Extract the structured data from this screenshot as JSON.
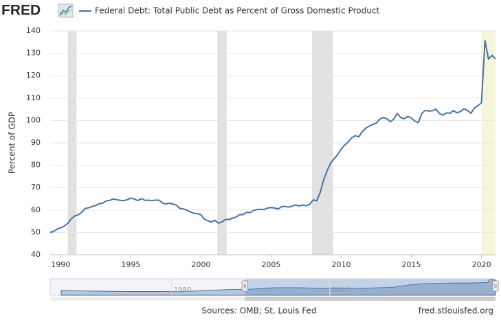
{
  "header": {
    "logo": "FRED"
  },
  "chart_data": [
    {
      "type": "line",
      "y_label": "Percent of GDP",
      "series": [
        {
          "name": "Federal Debt: Total Public Debt as Percent of Gross Domestic Product",
          "color": "#4572a7",
          "values": [
            50.0,
            50.4,
            51.5,
            52.0,
            52.8,
            54.0,
            56.0,
            57.3,
            57.8,
            59.0,
            60.7,
            61.0,
            61.6,
            62.0,
            62.8,
            63.1,
            64.1,
            64.3,
            64.9,
            64.6,
            64.3,
            64.2,
            64.6,
            65.3,
            64.9,
            64.2,
            65.1,
            64.3,
            64.4,
            64.2,
            64.4,
            64.4,
            63.2,
            62.7,
            63.0,
            62.7,
            62.1,
            60.7,
            60.5,
            59.9,
            59.1,
            58.5,
            58.4,
            57.9,
            55.8,
            55.2,
            54.6,
            55.4,
            54.1,
            54.7,
            55.8,
            55.7,
            56.4,
            56.8,
            57.9,
            57.9,
            59.0,
            58.8,
            59.8,
            60.2,
            60.3,
            60.2,
            60.9,
            61.1,
            60.9,
            60.4,
            61.5,
            61.6,
            61.3,
            61.7,
            62.3,
            61.8,
            62.2,
            61.9,
            62.5,
            64.5,
            64.1,
            67.8,
            73.5,
            77.6,
            81.0,
            82.9,
            84.8,
            87.2,
            89.0,
            90.4,
            92.2,
            93.2,
            92.7,
            95.0,
            96.5,
            97.5,
            98.2,
            98.8,
            100.6,
            101.3,
            100.8,
            99.4,
            100.6,
            103.1,
            101.2,
            100.8,
            101.8,
            101.1,
            99.7,
            99.0,
            103.2,
            104.5,
            104.2,
            104.3,
            105.1,
            103.1,
            102.4,
            103.4,
            103.2,
            104.4,
            103.4,
            104.0,
            105.2,
            104.5,
            103.2,
            105.6,
            106.6,
            107.9,
            135.6,
            127.4,
            129.1,
            127.5
          ]
        }
      ],
      "x": [
        1989.25,
        1989.5,
        1989.75,
        1990,
        1990.25,
        1990.5,
        1990.75,
        1991,
        1991.25,
        1991.5,
        1991.75,
        1992,
        1992.25,
        1992.5,
        1992.75,
        1993,
        1993.25,
        1993.5,
        1993.75,
        1994,
        1994.25,
        1994.5,
        1994.75,
        1995,
        1995.25,
        1995.5,
        1995.75,
        1996,
        1996.25,
        1996.5,
        1996.75,
        1997,
        1997.25,
        1997.5,
        1997.75,
        1998,
        1998.25,
        1998.5,
        1998.75,
        1999,
        1999.25,
        1999.5,
        1999.75,
        2000,
        2000.25,
        2000.5,
        2000.75,
        2001,
        2001.25,
        2001.5,
        2001.75,
        2002,
        2002.25,
        2002.5,
        2002.75,
        2003,
        2003.25,
        2003.5,
        2003.75,
        2004,
        2004.25,
        2004.5,
        2004.75,
        2005,
        2005.25,
        2005.5,
        2005.75,
        2006,
        2006.25,
        2006.5,
        2006.75,
        2007,
        2007.25,
        2007.5,
        2007.75,
        2008,
        2008.25,
        2008.5,
        2008.75,
        2009,
        2009.25,
        2009.5,
        2009.75,
        2010,
        2010.25,
        2010.5,
        2010.75,
        2011,
        2011.25,
        2011.5,
        2011.75,
        2012,
        2012.25,
        2012.5,
        2012.75,
        2013,
        2013.25,
        2013.5,
        2013.75,
        2014,
        2014.25,
        2014.5,
        2014.75,
        2015,
        2015.25,
        2015.5,
        2015.75,
        2016,
        2016.25,
        2016.5,
        2016.75,
        2017,
        2017.25,
        2017.5,
        2017.75,
        2018,
        2018.25,
        2018.5,
        2018.75,
        2019,
        2019.25,
        2019.5,
        2019.75,
        2020,
        2020.25,
        2020.5,
        2020.75,
        2021
      ],
      "xlim": [
        1989.25,
        2021
      ],
      "xticks": [
        1990,
        1995,
        2000,
        2005,
        2010,
        2015,
        2020
      ],
      "ylim": [
        40,
        140
      ],
      "yticks": [
        40,
        50,
        60,
        70,
        80,
        90,
        100,
        110,
        120,
        130,
        140
      ],
      "grid": true,
      "recessions": [
        {
          "start": 1990.5,
          "end": 1991.13,
          "color": "#e1e1e1"
        },
        {
          "start": 2001.17,
          "end": 2001.83,
          "color": "#e1e1e1"
        },
        {
          "start": 2007.92,
          "end": 2009.42,
          "color": "#e1e1e1"
        },
        {
          "start": 2020.0,
          "end": 2021,
          "color": "#f4f5d9"
        }
      ]
    },
    {
      "type": "area",
      "color": "#4572a7",
      "x": [
        1966,
        1970,
        1974,
        1978,
        1981,
        1984,
        1987,
        1990,
        1993,
        1996,
        1999,
        2002,
        2005,
        2008,
        2010,
        2012,
        2014,
        2016,
        2018,
        2020,
        2020.25,
        2021
      ],
      "values": [
        40,
        36,
        32,
        32,
        31,
        39,
        48,
        52,
        64,
        64,
        59,
        57,
        61,
        68,
        87,
        99,
        101,
        104,
        104,
        108,
        135.6,
        127.5
      ],
      "xlim": [
        1964.6,
        2021
      ],
      "xticks": [
        1980,
        2000
      ],
      "ylim": [
        0,
        140
      ],
      "selection": [
        1989.25,
        2021
      ]
    }
  ],
  "footer": {
    "sources": "Sources: OMB; St. Louis Fed",
    "site": "fred.stlouisfed.org"
  }
}
